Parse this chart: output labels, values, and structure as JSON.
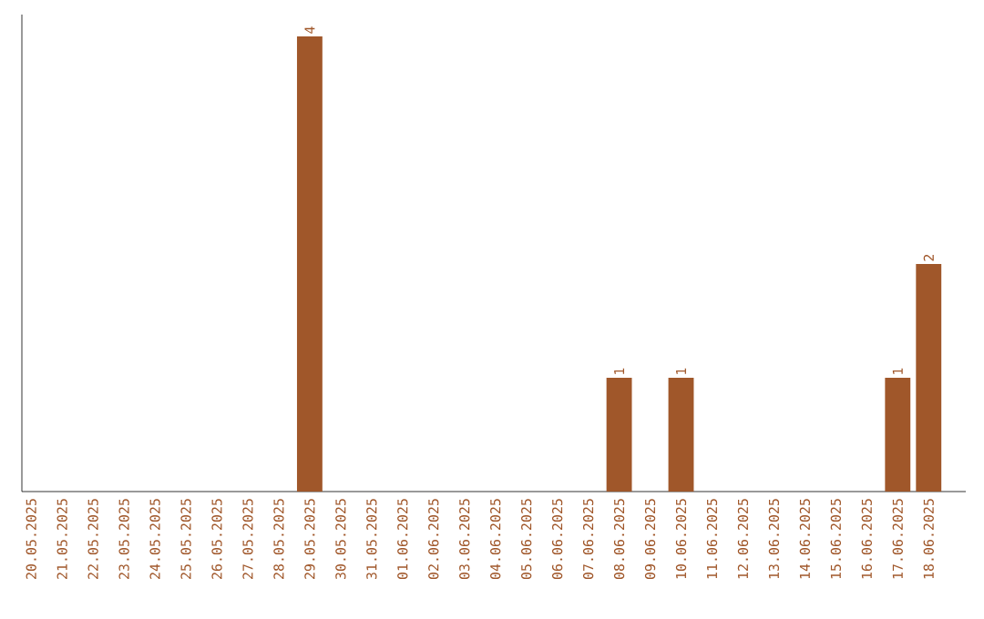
{
  "chart_data": {
    "type": "bar",
    "color": "#a0572a",
    "categories": [
      "20.05.2025",
      "21.05.2025",
      "22.05.2025",
      "23.05.2025",
      "24.05.2025",
      "25.05.2025",
      "26.05.2025",
      "27.05.2025",
      "28.05.2025",
      "29.05.2025",
      "30.05.2025",
      "31.05.2025",
      "01.06.2025",
      "02.06.2025",
      "03.06.2025",
      "04.06.2025",
      "05.06.2025",
      "06.06.2025",
      "07.06.2025",
      "08.06.2025",
      "09.06.2025",
      "10.06.2025",
      "11.06.2025",
      "12.06.2025",
      "13.06.2025",
      "14.06.2025",
      "15.06.2025",
      "16.06.2025",
      "17.06.2025",
      "18.06.2025"
    ],
    "values": [
      0,
      0,
      0,
      0,
      0,
      0,
      0,
      0,
      0,
      4,
      0,
      0,
      0,
      0,
      0,
      0,
      0,
      0,
      0,
      1,
      0,
      1,
      0,
      0,
      0,
      0,
      0,
      0,
      1,
      2
    ],
    "value_labels": [
      null,
      null,
      null,
      null,
      null,
      null,
      null,
      null,
      null,
      "4",
      null,
      null,
      null,
      null,
      null,
      null,
      null,
      null,
      null,
      "1",
      null,
      "1",
      null,
      null,
      null,
      null,
      null,
      null,
      "1",
      "2"
    ]
  }
}
